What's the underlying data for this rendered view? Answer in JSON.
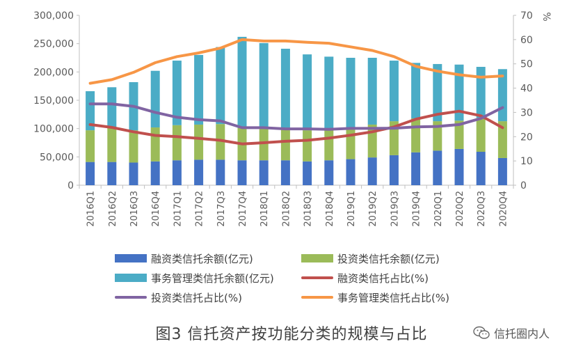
{
  "chart_data": {
    "type": "bar",
    "categories": [
      "2016Q1",
      "2016Q2",
      "2016Q3",
      "2016Q4",
      "2017Q1",
      "2017Q2",
      "2017Q3",
      "2017Q4",
      "2018Q1",
      "2018Q2",
      "2018Q3",
      "2018Q4",
      "2019Q1",
      "2019Q2",
      "2019Q3",
      "2019Q4",
      "2020Q1",
      "2020Q2",
      "2020Q3",
      "2020Q4"
    ],
    "stacked": true,
    "series": [
      {
        "name": "融资类信托余额(亿元)",
        "kind": "bar",
        "axis": "left",
        "color": "#4472C4",
        "values": [
          41000,
          41000,
          40000,
          42000,
          44000,
          45000,
          45000,
          44000,
          44000,
          44000,
          42000,
          44000,
          46000,
          49000,
          53000,
          58000,
          61000,
          64000,
          59000,
          48000
        ]
      },
      {
        "name": "投资类信托余额(亿元)",
        "kind": "bar",
        "axis": "left",
        "color": "#9BBB59",
        "values": [
          56000,
          60000,
          57000,
          60000,
          62000,
          62000,
          63000,
          57000,
          56000,
          54000,
          55000,
          55000,
          55000,
          58000,
          60000,
          60000,
          52000,
          50000,
          60000,
          65000
        ]
      },
      {
        "name": "事务管理类信托余额(亿元)",
        "kind": "bar",
        "axis": "left",
        "color": "#4BACC6",
        "values": [
          69000,
          72000,
          85000,
          100000,
          114000,
          123000,
          136000,
          161000,
          151000,
          143000,
          134000,
          128000,
          124000,
          118000,
          107000,
          98000,
          101000,
          99000,
          90000,
          92000
        ]
      },
      {
        "name": "融资类信托占比(%)",
        "kind": "line",
        "axis": "right",
        "color": "#C0504D",
        "values": [
          25,
          23.8,
          22,
          20.5,
          20,
          19.3,
          18.5,
          17,
          17.5,
          18.1,
          18.5,
          19.4,
          20.6,
          22,
          24,
          27.2,
          29.2,
          30.5,
          28.6,
          23.7
        ]
      },
      {
        "name": "投资类信托占比(%)",
        "kind": "line",
        "axis": "right",
        "color": "#8064A2",
        "values": [
          33.5,
          33.5,
          32.5,
          30,
          28,
          27,
          26.5,
          23.7,
          23.7,
          23.2,
          23.2,
          23,
          23.4,
          23.4,
          23.5,
          24,
          24.2,
          25,
          27.5,
          32
        ]
      },
      {
        "name": "事务管理类信托占比(%)",
        "kind": "line",
        "axis": "right",
        "color": "#F79646",
        "values": [
          42,
          43.5,
          46.5,
          50.5,
          53,
          54.5,
          56.5,
          60,
          59.4,
          59.4,
          58.9,
          58.5,
          57,
          55.5,
          53,
          49,
          47,
          45.5,
          44.5,
          45
        ]
      }
    ],
    "y_left": {
      "min": 0,
      "max": 300000,
      "step": 50000,
      "ticks": [
        "0",
        "50,000",
        "100,000",
        "150,000",
        "200,000",
        "250,000",
        "300,000"
      ]
    },
    "y_right": {
      "min": 0,
      "max": 70,
      "step": 10,
      "unit": "%",
      "ticks": [
        "0",
        "10",
        "20",
        "30",
        "40",
        "50",
        "60",
        "70"
      ]
    },
    "grid": false,
    "legend_position": "bottom",
    "title": "图3 信托资产按功能分类的规模与占比"
  },
  "watermark": {
    "text": "信托圈内人",
    "icon": "wechat-icon"
  }
}
